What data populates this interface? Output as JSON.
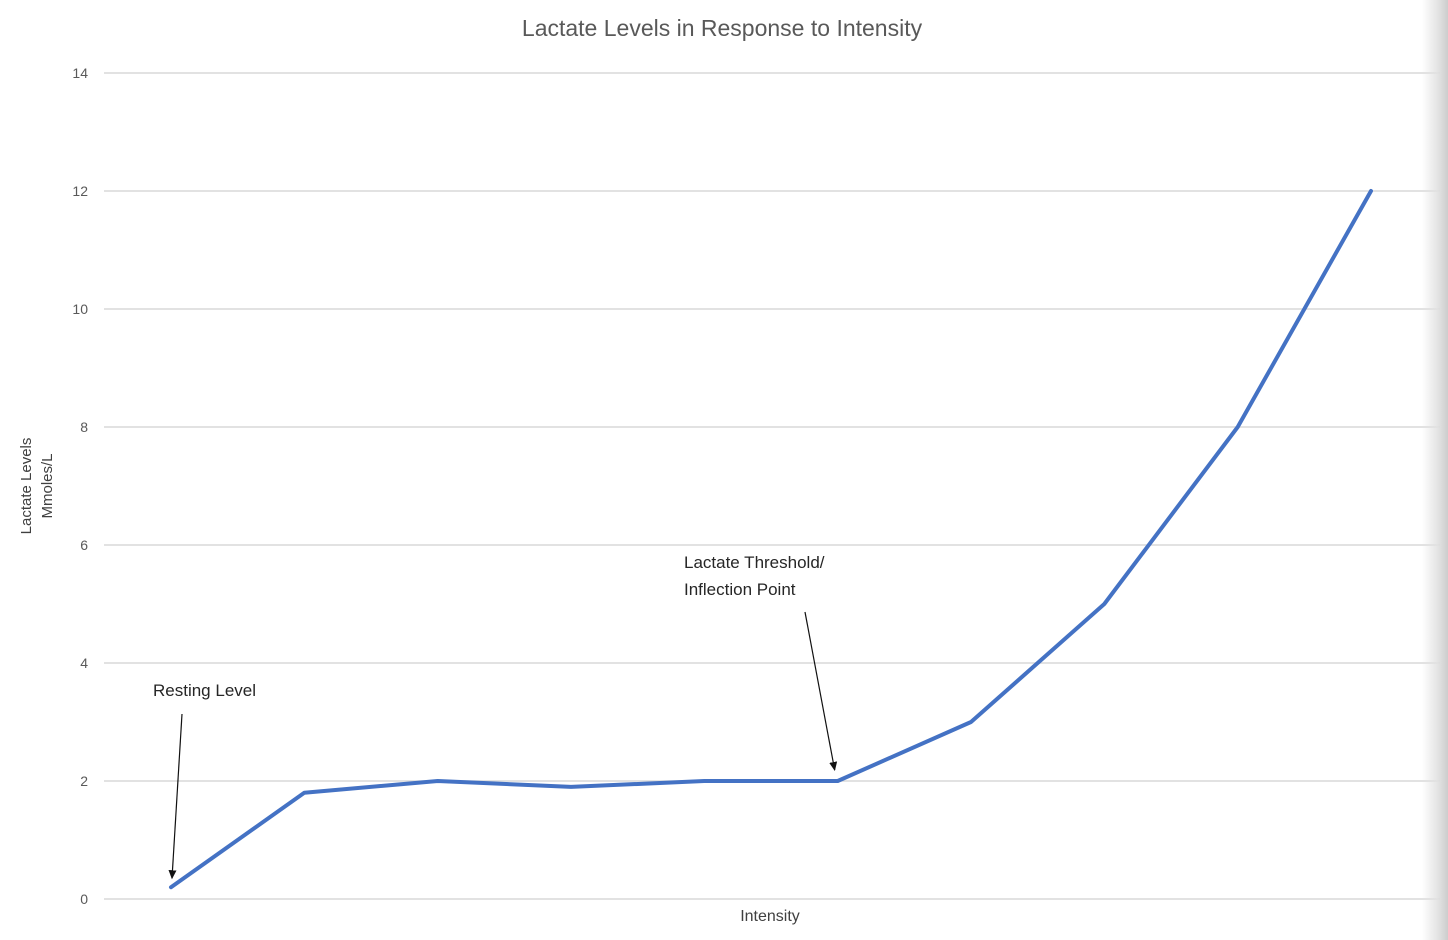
{
  "chart_data": {
    "type": "line",
    "title": "Lactate Levels in Response to Intensity",
    "xlabel": "Intensity",
    "ylabel_lines": [
      "Lactate Levels",
      "Mmoles/L"
    ],
    "ylim": [
      0,
      14
    ],
    "yticks": [
      "0",
      "2",
      "4",
      "6",
      "8",
      "10",
      "12",
      "14"
    ],
    "grid": true,
    "x": [
      1,
      2,
      3,
      4,
      5,
      6,
      7,
      8,
      9,
      10
    ],
    "series": [
      {
        "values": [
          0.2,
          1.8,
          2.0,
          1.9,
          2.0,
          2.0,
          3.0,
          5.0,
          8.0,
          12.0
        ],
        "color": "#4472C4"
      }
    ],
    "annotations": [
      {
        "lines": [
          "Resting Level"
        ],
        "point_index": 0
      },
      {
        "lines": [
          "Lactate Threshold/",
          "Inflection Point"
        ],
        "point_index": 5
      }
    ]
  }
}
